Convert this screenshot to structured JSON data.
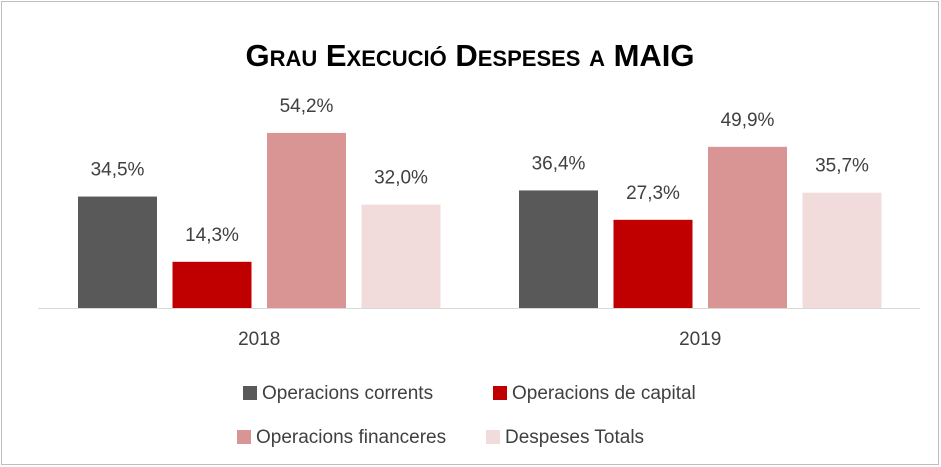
{
  "chart_data": {
    "type": "bar",
    "title": "Grau Execució Despeses a MAIG",
    "categories": [
      "2018",
      "2019"
    ],
    "series": [
      {
        "name": "Operacions corrents",
        "color": "#595959",
        "values": [
          34.5,
          36.4
        ],
        "value_labels": [
          "34,5%",
          "36,4%"
        ]
      },
      {
        "name": "Operacions de capital",
        "color": "#c00000",
        "values": [
          14.3,
          27.3
        ],
        "value_labels": [
          "14,3%",
          "27,3%"
        ]
      },
      {
        "name": "Operacions financeres",
        "color": "#d99594",
        "values": [
          54.2,
          49.9
        ],
        "value_labels": [
          "54,2%",
          "49,9%"
        ]
      },
      {
        "name": "Despeses Totals",
        "color": "#f2dcdb",
        "values": [
          32.0,
          35.7
        ],
        "value_labels": [
          "32,0%",
          "35,7%"
        ]
      }
    ]
  }
}
